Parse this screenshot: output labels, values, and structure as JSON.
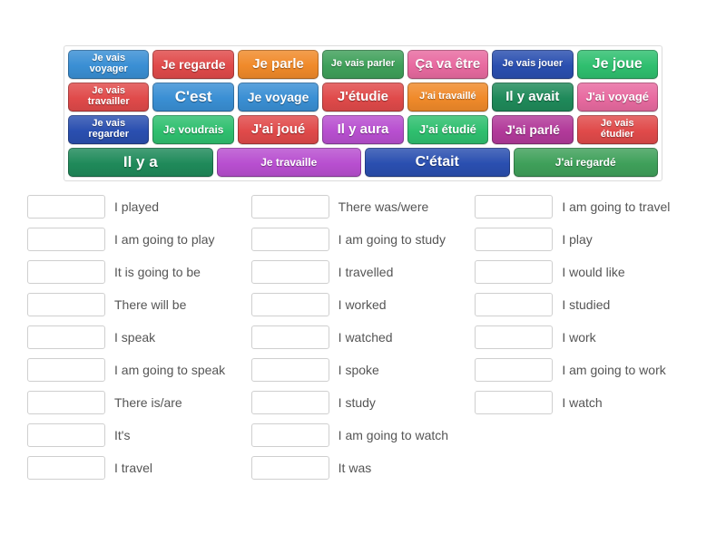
{
  "tiles": {
    "rows": [
      [
        {
          "text": "Je vais\nvoyager",
          "bg": "#3a8fd4",
          "fs": 11
        },
        {
          "text": "Je regarde",
          "bg": "#e04a4a",
          "fs": 14
        },
        {
          "text": "Je parle",
          "bg": "#f08a2a",
          "fs": 15
        },
        {
          "text": "Je vais parler",
          "bg": "#3fa05a",
          "fs": 11
        },
        {
          "text": "Ça va être",
          "bg": "#e86aa0",
          "fs": 15
        },
        {
          "text": "Je vais jouer",
          "bg": "#2a4fb0",
          "fs": 11
        },
        {
          "text": "Je joue",
          "bg": "#2fbf6f",
          "fs": 16
        }
      ],
      [
        {
          "text": "Je vais\ntravailler",
          "bg": "#e04a4a",
          "fs": 11
        },
        {
          "text": "C'est",
          "bg": "#3a8fd4",
          "fs": 17
        },
        {
          "text": "Je voyage",
          "bg": "#3a8fd4",
          "fs": 14
        },
        {
          "text": "J'étudie",
          "bg": "#e04a4a",
          "fs": 15
        },
        {
          "text": "J'ai travaillé",
          "bg": "#f08a2a",
          "fs": 11
        },
        {
          "text": "Il y avait",
          "bg": "#1f8a5a",
          "fs": 15
        },
        {
          "text": "J'ai voyagé",
          "bg": "#e86aa0",
          "fs": 13
        }
      ],
      [
        {
          "text": "Je vais\nregarder",
          "bg": "#2a4fb0",
          "fs": 11
        },
        {
          "text": "Je voudrais",
          "bg": "#2fbf6f",
          "fs": 12
        },
        {
          "text": "J'ai joué",
          "bg": "#e04a4a",
          "fs": 15
        },
        {
          "text": "Il y aura",
          "bg": "#b84fd0",
          "fs": 15
        },
        {
          "text": "J'ai étudié",
          "bg": "#2fbf6f",
          "fs": 13
        },
        {
          "text": "J'ai parlé",
          "bg": "#b23a9a",
          "fs": 14
        },
        {
          "text": "Je vais\nétudier",
          "bg": "#e04a4a",
          "fs": 11
        }
      ],
      [
        {
          "text": "Il y a",
          "bg": "#1f8a5a",
          "fs": 17
        },
        {
          "text": "Je travaille",
          "bg": "#b84fd0",
          "fs": 12
        },
        {
          "text": "C'était",
          "bg": "#2a4fb0",
          "fs": 16
        },
        {
          "text": "J'ai regardé",
          "bg": "#3fa05a",
          "fs": 12
        }
      ]
    ]
  },
  "answers": {
    "cols": [
      [
        "I played",
        "I am going to play",
        "It is going to be",
        "There will be",
        "I speak",
        "I am going to speak",
        "There is/are",
        "It's",
        "I travel"
      ],
      [
        "There was/were",
        "I am going to study",
        "I travelled",
        "I worked",
        "I watched",
        "I spoke",
        "I study",
        "I am going to watch",
        "It was"
      ],
      [
        "I am going to travel",
        "I play",
        "I would like",
        "I studied",
        "I work",
        "I am going to work",
        "I watch"
      ]
    ]
  },
  "colors": {
    "page_bg": "#ffffff",
    "tile_border": "#dcdcdc",
    "slot_border": "#cfcfcf",
    "text": "#555555"
  }
}
